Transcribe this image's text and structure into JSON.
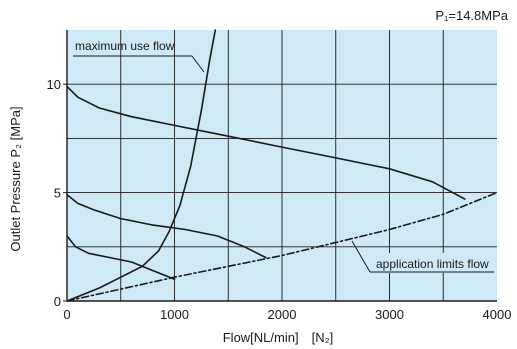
{
  "chart_data": {
    "type": "line",
    "condition": "P₁=14.8MPa",
    "xlabel": "Flow[NL/min]　[N₂]",
    "ylabel": "Outlet Pressure P₂ [MPa]",
    "xlim": [
      0,
      4000
    ],
    "ylim": [
      0,
      12.5
    ],
    "x_ticks": [
      {
        "value": 0,
        "label": "0"
      },
      {
        "value": 1000,
        "label": "1000"
      },
      {
        "value": 2000,
        "label": "2000"
      },
      {
        "value": 3000,
        "label": "3000"
      },
      {
        "value": 4000,
        "label": "4000"
      }
    ],
    "y_ticks": [
      {
        "value": 0,
        "label": "0"
      },
      {
        "value": 5,
        "label": "5"
      },
      {
        "value": 10,
        "label": "10"
      }
    ],
    "grid": {
      "x_step": 500,
      "y_step": 2.5,
      "visible": true
    },
    "plot_background": "#cfe9f7",
    "line_color": "#1a1a1a",
    "series": [
      {
        "style": "solid",
        "points": [
          [
            0,
            9.9
          ],
          [
            100,
            9.4
          ],
          [
            300,
            8.9
          ],
          [
            600,
            8.5
          ],
          [
            1000,
            8.1
          ],
          [
            1500,
            7.6
          ],
          [
            2000,
            7.1
          ],
          [
            2500,
            6.6
          ],
          [
            3000,
            6.1
          ],
          [
            3400,
            5.5
          ],
          [
            3700,
            4.7
          ]
        ]
      },
      {
        "style": "solid",
        "points": [
          [
            0,
            4.9
          ],
          [
            100,
            4.5
          ],
          [
            250,
            4.2
          ],
          [
            500,
            3.8
          ],
          [
            800,
            3.5
          ],
          [
            1100,
            3.3
          ],
          [
            1400,
            3.0
          ],
          [
            1650,
            2.5
          ],
          [
            1850,
            2.0
          ]
        ]
      },
      {
        "style": "solid",
        "points": [
          [
            0,
            3.0
          ],
          [
            80,
            2.5
          ],
          [
            200,
            2.2
          ],
          [
            400,
            2.0
          ],
          [
            600,
            1.8
          ],
          [
            800,
            1.4
          ],
          [
            1000,
            1.0
          ]
        ]
      },
      {
        "name": "maximum use flow",
        "style": "solid",
        "points": [
          [
            0,
            0
          ],
          [
            300,
            0.6
          ],
          [
            500,
            1.1
          ],
          [
            700,
            1.6
          ],
          [
            850,
            2.3
          ],
          [
            950,
            3.2
          ],
          [
            1050,
            4.4
          ],
          [
            1150,
            6.2
          ],
          [
            1250,
            8.8
          ],
          [
            1330,
            11.2
          ],
          [
            1380,
            12.5
          ]
        ]
      },
      {
        "name": "application limits flow",
        "style": "dashdot",
        "points": [
          [
            0,
            0
          ],
          [
            1000,
            1.1
          ],
          [
            2000,
            2.1
          ],
          [
            3000,
            3.3
          ],
          [
            3500,
            4.0
          ],
          [
            4000,
            5.0
          ]
        ]
      }
    ],
    "annotations": [
      {
        "text": "maximum use flow",
        "series": "maximum use flow"
      },
      {
        "text": "application limits flow",
        "series": "application limits flow"
      }
    ]
  }
}
